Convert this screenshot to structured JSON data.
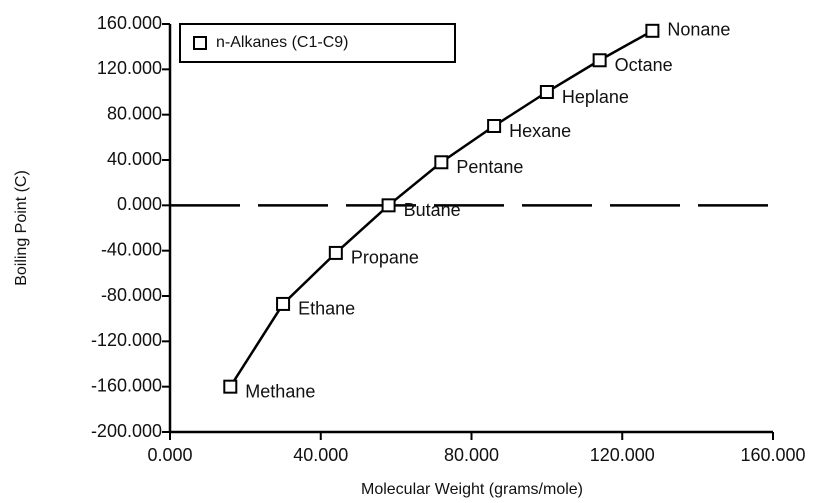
{
  "chart_data": {
    "type": "line",
    "xlabel": "Molecular Weight   (grams/mole)",
    "ylabel": "Boiling Point  (C)",
    "x": [
      16,
      30,
      44,
      58,
      72,
      86,
      100,
      114,
      128
    ],
    "series": [
      {
        "name": "n-Alkanes  (C1-C9)",
        "color": "#000000",
        "values": [
          -160,
          -87,
          -42,
          0,
          38,
          70,
          100,
          128,
          154
        ],
        "labels": [
          "Methane",
          "Ethane",
          "Propane",
          "Butane",
          "Pentane",
          "Hexane",
          "Heplane",
          "Octane",
          "Nonane"
        ]
      }
    ],
    "xlim": [
      0,
      160
    ],
    "xticks": [
      {
        "value": 0,
        "label": "0.000"
      },
      {
        "value": 40,
        "label": "40.000"
      },
      {
        "value": 80,
        "label": "80.000"
      },
      {
        "value": 120,
        "label": "120.000"
      },
      {
        "value": 160,
        "label": "160.000"
      }
    ],
    "ylim": [
      -200,
      160
    ],
    "yticks": [
      {
        "value": -200,
        "label": "-200.000"
      },
      {
        "value": -160,
        "label": "-160.000"
      },
      {
        "value": -120,
        "label": "-120.000"
      },
      {
        "value": -80,
        "label": "-80.000"
      },
      {
        "value": -40,
        "label": "-40.000"
      },
      {
        "value": 0,
        "label": "0.000"
      },
      {
        "value": 40,
        "label": "40.000"
      },
      {
        "value": 80,
        "label": "80.000"
      },
      {
        "value": 120,
        "label": "120.000"
      },
      {
        "value": 160,
        "label": "160.000"
      }
    ],
    "zero_line": true,
    "legend": "upper left"
  }
}
